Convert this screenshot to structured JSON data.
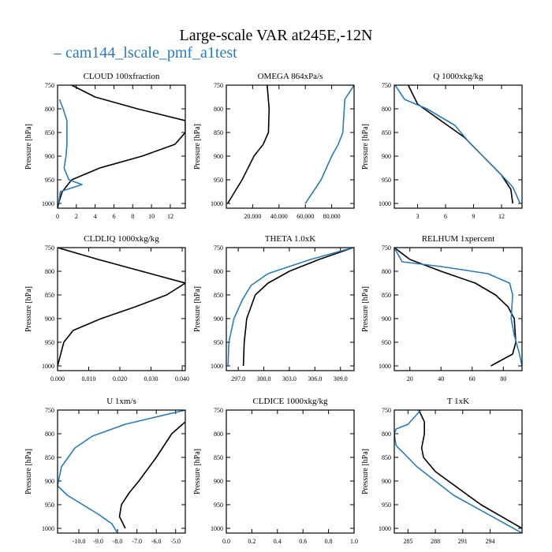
{
  "title": "Large-scale VAR at245E,-12N",
  "legend": {
    "label": "cam144_lscale_pmf_a1test",
    "marker": "–",
    "color": "#2a7bb6"
  },
  "colors": {
    "case": "#2a7bb6",
    "reference": "#000000"
  },
  "chart_data": [
    {
      "type": "line",
      "title": "CLOUD  100xfraction",
      "ylabel": "Pressure [hPa]",
      "ylim": [
        1010,
        750
      ],
      "yticks": [
        750,
        800,
        850,
        900,
        950,
        1000
      ],
      "xlim": [
        0,
        13.6
      ],
      "xticks": [
        0,
        2,
        4,
        6,
        8,
        10,
        12
      ],
      "xticklabels": [
        "0",
        "2",
        "4",
        "6",
        "8",
        "10",
        "12"
      ],
      "series": [
        {
          "color": "#000000",
          "x": [
            1.5,
            4.0,
            8.5,
            13.6,
            13.6,
            12.5,
            9.0,
            4.5,
            1.5,
            0.5,
            0.1,
            0.0
          ],
          "y": [
            750,
            775,
            800,
            825,
            850,
            875,
            900,
            925,
            950,
            975,
            1000,
            1010
          ]
        },
        {
          "color": "#2a7bb6",
          "x": [
            0.2,
            0.6,
            1.0,
            1.0,
            1.0,
            0.9,
            0.7,
            1.2,
            2.6,
            0.3,
            0.1
          ],
          "y": [
            780,
            800,
            825,
            850,
            875,
            900,
            925,
            950,
            960,
            975,
            1000
          ]
        }
      ]
    },
    {
      "type": "line",
      "title": "OMEGA  864xPa/s",
      "ylabel": "Pressure [hPa]",
      "ylim": [
        1010,
        750
      ],
      "yticks": [
        750,
        800,
        850,
        900,
        950,
        1000
      ],
      "xlim": [
        0,
        97000
      ],
      "xticks": [
        20000,
        40000,
        60000,
        80000
      ],
      "xticklabels": [
        "20.000",
        "40.000",
        "60.000",
        "80.000"
      ],
      "series": [
        {
          "color": "#000000",
          "x": [
            31000,
            32500,
            32000,
            28000,
            21000,
            12000,
            1000
          ],
          "y": [
            750,
            800,
            850,
            875,
            900,
            950,
            1000
          ]
        },
        {
          "color": "#2a7bb6",
          "x": [
            97000,
            90000,
            89000,
            88500,
            85000,
            80000,
            72000,
            60000
          ],
          "y": [
            750,
            780,
            825,
            850,
            875,
            900,
            950,
            1000
          ]
        }
      ]
    },
    {
      "type": "line",
      "title": "Q  1000xkg/kg",
      "ylabel": "Pressure [hPa]",
      "ylim": [
        1010,
        750
      ],
      "yticks": [
        750,
        800,
        850,
        900,
        950,
        1000
      ],
      "xlim": [
        0.5,
        14.2
      ],
      "xticks": [
        3,
        6,
        9,
        12
      ],
      "xticklabels": [
        "3",
        "6",
        "9",
        "12"
      ],
      "series": [
        {
          "color": "#000000",
          "x": [
            2.0,
            3.0,
            5.5,
            8.0,
            10.0,
            12.0,
            13.0,
            13.2
          ],
          "y": [
            750,
            790,
            825,
            860,
            900,
            940,
            970,
            1000
          ]
        },
        {
          "color": "#2a7bb6",
          "x": [
            0.6,
            1.6,
            4.0,
            7.0,
            8.5,
            10.0,
            12.0,
            13.2,
            14.0
          ],
          "y": [
            750,
            780,
            800,
            835,
            870,
            900,
            940,
            965,
            1000
          ]
        }
      ]
    },
    {
      "type": "line",
      "title": "CLDLIQ  1000xkg/kg",
      "ylabel": "Pressure [hPa]",
      "ylim": [
        1010,
        750
      ],
      "yticks": [
        750,
        800,
        850,
        900,
        950,
        1000
      ],
      "xlim": [
        0,
        0.041
      ],
      "xticks": [
        0,
        0.01,
        0.02,
        0.03,
        0.04
      ],
      "xticklabels": [
        "0.000",
        "0.010",
        "0.020",
        "0.030",
        "0.040"
      ],
      "series": [
        {
          "color": "#000000",
          "x": [
            0.0,
            0.013,
            0.041,
            0.035,
            0.025,
            0.014,
            0.005,
            0.002,
            0.001,
            0.0
          ],
          "y": [
            750,
            775,
            825,
            850,
            875,
            900,
            925,
            950,
            975,
            1000
          ]
        }
      ]
    },
    {
      "type": "line",
      "title": "THETA  1.0xK",
      "ylabel": "Pressure [hPa]",
      "ylim": [
        1010,
        750
      ],
      "yticks": [
        750,
        800,
        850,
        900,
        950,
        1000
      ],
      "xlim": [
        295.6,
        310.6
      ],
      "xticks": [
        297,
        300,
        303,
        306,
        309
      ],
      "xticklabels": [
        "297.0",
        "300.0",
        "303.0",
        "306.0",
        "309.0"
      ],
      "series": [
        {
          "color": "#000000",
          "x": [
            310.5,
            306.5,
            303.0,
            300.5,
            299.0,
            298.0,
            297.7,
            297.6
          ],
          "y": [
            750,
            775,
            800,
            825,
            850,
            900,
            950,
            1000
          ]
        },
        {
          "color": "#2a7bb6",
          "x": [
            310.5,
            305.5,
            300.5,
            298.5,
            297.5,
            296.5,
            295.9,
            295.8
          ],
          "y": [
            750,
            775,
            805,
            830,
            860,
            900,
            950,
            1000
          ]
        }
      ]
    },
    {
      "type": "line",
      "title": "RELHUM  1xpercent",
      "ylabel": "Pressure [hPa]",
      "ylim": [
        1010,
        750
      ],
      "yticks": [
        750,
        800,
        850,
        900,
        950,
        1000
      ],
      "xlim": [
        10,
        92
      ],
      "xticks": [
        20,
        40,
        60,
        80
      ],
      "xticklabels": [
        "20",
        "40",
        "60",
        "80"
      ],
      "series": [
        {
          "color": "#000000",
          "x": [
            10,
            20,
            40,
            62,
            75,
            83,
            87,
            88,
            86,
            72
          ],
          "y": [
            750,
            775,
            800,
            825,
            850,
            875,
            900,
            950,
            975,
            1000
          ]
        },
        {
          "color": "#2a7bb6",
          "x": [
            10,
            15,
            40,
            70,
            84,
            86,
            85,
            87,
            90,
            92
          ],
          "y": [
            750,
            780,
            790,
            805,
            825,
            850,
            900,
            935,
            970,
            1000
          ]
        }
      ]
    },
    {
      "type": "line",
      "title": "U  1xm/s",
      "ylabel": "Pressure [hPa]",
      "ylim": [
        1010,
        750
      ],
      "yticks": [
        750,
        800,
        850,
        900,
        950,
        1000
      ],
      "xlim": [
        -11.1,
        -4.5
      ],
      "xticks": [
        -10,
        -9,
        -8,
        -7,
        -6,
        -5
      ],
      "xticklabels": [
        "-10.0",
        "-9.0",
        "-8.0",
        "-7.0",
        "-6.0",
        "-5.0"
      ],
      "series": [
        {
          "color": "#000000",
          "x": [
            -4.5,
            -5.2,
            -6.0,
            -6.9,
            -7.4,
            -7.8,
            -7.9,
            -7.6
          ],
          "y": [
            775,
            800,
            850,
            900,
            925,
            950,
            975,
            1000
          ]
        },
        {
          "color": "#2a7bb6",
          "x": [
            -4.5,
            -7.6,
            -9.3,
            -10.2,
            -10.9,
            -11.1,
            -10.6,
            -9.0,
            -8.3,
            -8.0
          ],
          "y": [
            750,
            780,
            805,
            830,
            870,
            910,
            930,
            970,
            990,
            1010
          ]
        }
      ]
    },
    {
      "type": "line",
      "title": "CLDICE  1000xkg/kg",
      "ylabel": "Pressure [hPa]",
      "ylim": [
        1010,
        750
      ],
      "yticks": [
        750,
        800,
        850,
        900,
        950,
        1000
      ],
      "xlim": [
        0,
        1
      ],
      "xticks": [
        0,
        0.2,
        0.4,
        0.6,
        0.8,
        1.0
      ],
      "xticklabels": [
        "0.0",
        "0.2",
        "0.4",
        "0.6",
        "0.8",
        "1.0"
      ],
      "series": []
    },
    {
      "type": "line",
      "title": "T  1xK",
      "ylabel": "Pressure [hPa]",
      "ylim": [
        1010,
        750
      ],
      "yticks": [
        750,
        800,
        850,
        900,
        950,
        1000
      ],
      "xlim": [
        283.5,
        297.5
      ],
      "xticks": [
        285,
        288,
        291,
        294
      ],
      "xticklabels": [
        "285",
        "288",
        "291",
        "294"
      ],
      "series": [
        {
          "color": "#000000",
          "x": [
            286.2,
            286.8,
            286.8,
            286.5,
            286.7,
            288.0,
            293.0,
            297.5
          ],
          "y": [
            750,
            775,
            800,
            830,
            850,
            880,
            950,
            1000
          ]
        },
        {
          "color": "#2a7bb6",
          "x": [
            286.4,
            285.0,
            283.7,
            283.5,
            283.7,
            286.0,
            290.0,
            297.5
          ],
          "y": [
            750,
            780,
            790,
            800,
            825,
            870,
            930,
            1010
          ]
        }
      ]
    }
  ]
}
